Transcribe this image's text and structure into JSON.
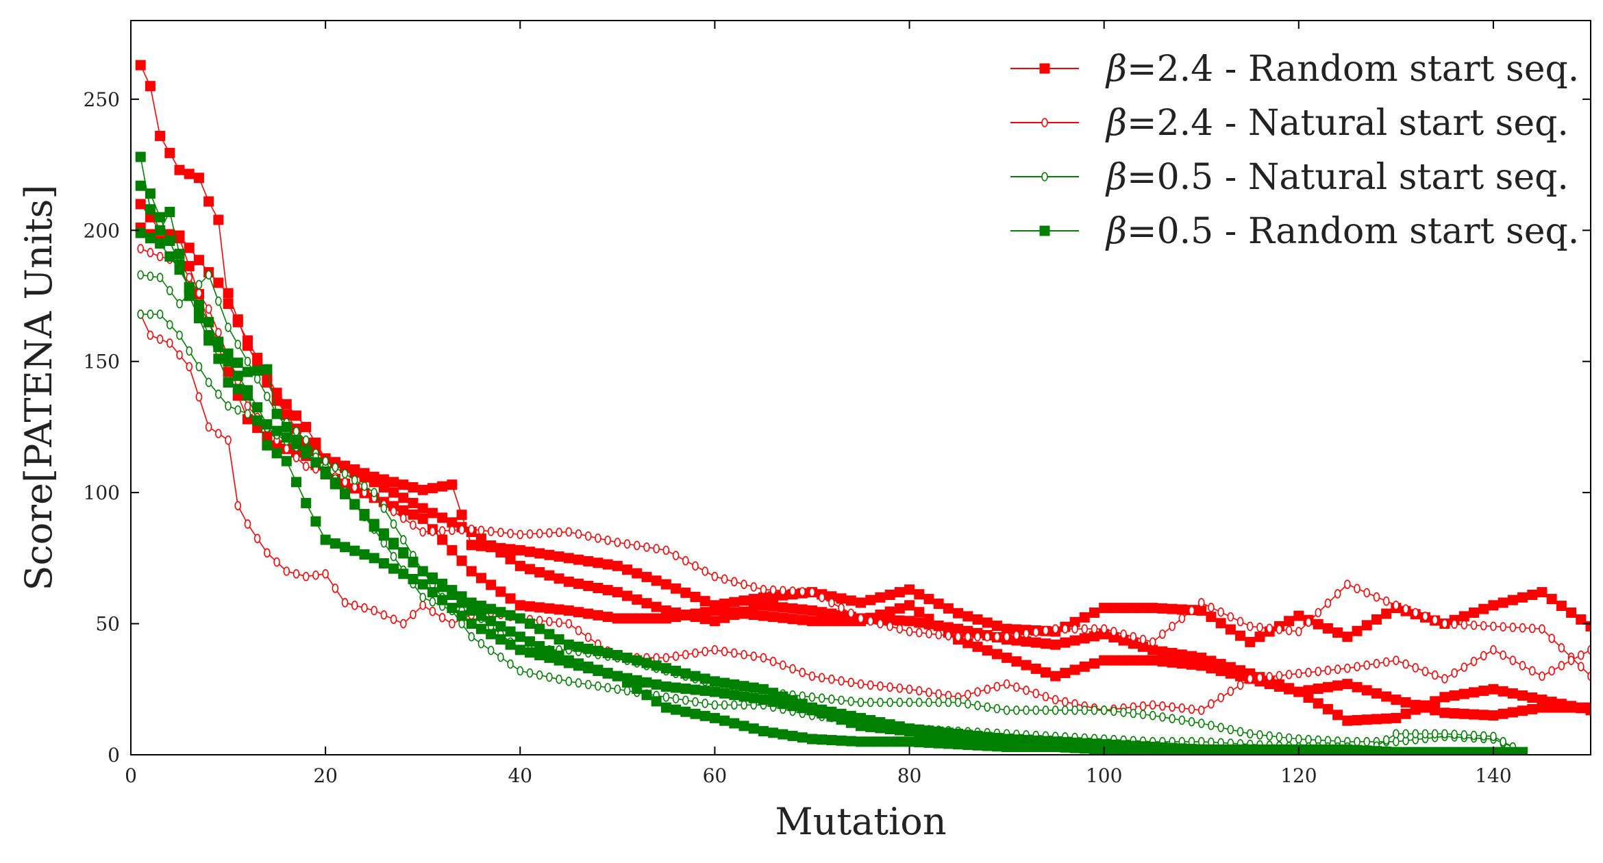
{
  "chart_data": {
    "type": "line",
    "xlabel": "Mutation",
    "ylabel": "Score[PATENA Units]",
    "xlim": [
      0,
      150
    ],
    "ylim": [
      0,
      280
    ],
    "xticks": [
      "0",
      "20",
      "40",
      "60",
      "80",
      "100",
      "120",
      "140"
    ],
    "yticks": [
      "0",
      "50",
      "100",
      "150",
      "200",
      "250"
    ],
    "grid": false,
    "legend_position": "top-right",
    "legend": [
      {
        "beta": "β",
        "text": "=2.4 - Random start seq.",
        "color": "#ff0000",
        "marker": "square"
      },
      {
        "beta": "β",
        "text": "=2.4 - Natural start seq.",
        "color": "#ff0000",
        "marker": "circle"
      },
      {
        "beta": "β",
        "text": "=0.5 - Natural start seq.",
        "color": "#008000",
        "marker": "circle"
      },
      {
        "beta": "β",
        "text": "=0.5 - Random start seq.",
        "color": "#008000",
        "marker": "square"
      }
    ],
    "series": [
      {
        "group": 0,
        "color": "#ff0000",
        "marker": "square",
        "x": [
          1,
          2,
          3,
          5,
          7,
          8,
          9,
          10,
          12,
          15,
          18,
          20,
          25,
          30,
          33,
          35,
          40,
          45,
          50,
          55,
          60,
          65,
          70,
          75,
          80,
          85,
          90,
          95,
          100,
          105,
          110,
          115,
          120,
          125,
          130,
          135,
          140,
          145,
          150
        ],
        "y": [
          263,
          255,
          236,
          223,
          220,
          211,
          204,
          172,
          158,
          138,
          125,
          113,
          106,
          101,
          103,
          80,
          78,
          75,
          72,
          65,
          57,
          60,
          62,
          58,
          63,
          54,
          48,
          47,
          56,
          56,
          55,
          43,
          53,
          45,
          56,
          50,
          57,
          62,
          49
        ]
      },
      {
        "group": 0,
        "color": "#ff0000",
        "marker": "square",
        "x": [
          1,
          3,
          5,
          8,
          10,
          12,
          15,
          18,
          20,
          25,
          30,
          35,
          40,
          45,
          50,
          55,
          60,
          65,
          70,
          75,
          80,
          85,
          90,
          95,
          100,
          105,
          110,
          115,
          120,
          125,
          130,
          135,
          140,
          145,
          150
        ],
        "y": [
          201,
          196,
          198,
          184,
          176,
          156,
          135,
          119,
          113,
          104,
          94,
          85,
          72,
          66,
          62,
          55,
          51,
          57,
          55,
          52,
          51,
          48,
          44,
          42,
          46,
          40,
          37,
          31,
          24,
          27,
          21,
          16,
          15,
          18,
          18
        ]
      },
      {
        "group": 0,
        "color": "#ff0000",
        "marker": "square",
        "x": [
          1,
          3,
          5,
          8,
          10,
          12,
          15,
          18,
          20,
          25,
          30,
          35,
          40,
          45,
          50,
          55,
          60,
          65,
          70,
          75,
          80,
          85,
          90,
          95,
          100,
          105,
          110,
          115,
          120,
          125,
          130,
          135,
          140,
          145,
          150
        ],
        "y": [
          210,
          200,
          197,
          165,
          146,
          128,
          118,
          114,
          107,
          98,
          90,
          70,
          57,
          55,
          52,
          52,
          55,
          53,
          51,
          51,
          57,
          44,
          37,
          30,
          36,
          36,
          34,
          29,
          24,
          13,
          14,
          22,
          25,
          21,
          17
        ]
      },
      {
        "group": 1,
        "color": "#ff0000",
        "marker": "circle",
        "x": [
          1,
          3,
          5,
          8,
          10,
          12,
          15,
          18,
          20,
          25,
          30,
          35,
          40,
          45,
          50,
          55,
          60,
          65,
          70,
          75,
          80,
          85,
          90,
          95,
          100,
          105,
          110,
          115,
          120,
          125,
          130,
          135,
          140,
          145,
          150
        ],
        "y": [
          193,
          190,
          188,
          170,
          152,
          133,
          120,
          110,
          108,
          98,
          85,
          86,
          84,
          85,
          81,
          78,
          68,
          63,
          62,
          52,
          47,
          45,
          45,
          48,
          48,
          43,
          58,
          49,
          47,
          65,
          57,
          50,
          49,
          48,
          30
        ]
      },
      {
        "group": 1,
        "color": "#ff0000",
        "marker": "circle",
        "x": [
          1,
          2,
          4,
          6,
          8,
          10,
          11,
          12,
          14,
          16,
          18,
          20,
          22,
          25,
          28,
          30,
          33,
          36,
          40,
          45,
          50,
          55,
          60,
          65,
          70,
          75,
          80,
          85,
          90,
          95,
          100,
          105,
          110,
          115,
          120,
          125,
          130,
          135,
          140,
          145,
          150
        ],
        "y": [
          168,
          160,
          157,
          148,
          125,
          120,
          95,
          88,
          77,
          70,
          68,
          69,
          58,
          55,
          50,
          57,
          50,
          55,
          52,
          50,
          37,
          37,
          40,
          37,
          30,
          27,
          25,
          22,
          27,
          21,
          17,
          19,
          17,
          29,
          31,
          33,
          36,
          29,
          40,
          30,
          40
        ]
      },
      {
        "group": 2,
        "color": "#008000",
        "marker": "circle",
        "x": [
          1,
          3,
          5,
          8,
          10,
          12,
          15,
          18,
          20,
          25,
          30,
          33,
          35,
          40,
          45,
          50,
          55,
          60,
          65,
          70,
          75,
          80,
          85,
          90,
          95,
          100,
          105,
          110,
          115,
          120,
          125,
          130,
          135,
          140,
          142
        ],
        "y": [
          183,
          182,
          172,
          183,
          163,
          150,
          130,
          120,
          110,
          86,
          60,
          55,
          55,
          40,
          40,
          37,
          32,
          27,
          24,
          22,
          20,
          20,
          20,
          17,
          17,
          17,
          15,
          12,
          8,
          6,
          5,
          5,
          7,
          6,
          3
        ]
      },
      {
        "group": 2,
        "color": "#008000",
        "marker": "circle",
        "x": [
          1,
          3,
          5,
          8,
          10,
          12,
          15,
          18,
          20,
          25,
          30,
          35,
          40,
          45,
          50,
          55,
          60,
          65,
          70,
          75,
          80,
          85,
          90,
          95,
          100,
          105,
          110,
          115,
          120,
          125,
          127,
          130,
          135,
          140,
          142
        ],
        "y": [
          168,
          168,
          160,
          142,
          133,
          130,
          122,
          115,
          112,
          100,
          70,
          45,
          32,
          28,
          25,
          22,
          19,
          19,
          15,
          13,
          10,
          9,
          8,
          7,
          6,
          5,
          5,
          4,
          3,
          3,
          1,
          8,
          8,
          7,
          3
        ]
      },
      {
        "group": 3,
        "color": "#008000",
        "marker": "square",
        "x": [
          1,
          2,
          3,
          4,
          6,
          8,
          10,
          12,
          14,
          15,
          18,
          20,
          25,
          30,
          35,
          40,
          45,
          50,
          55,
          60,
          65,
          70,
          75,
          80,
          85,
          90,
          95,
          100,
          105,
          110,
          115,
          120,
          125,
          130,
          135,
          140,
          143
        ],
        "y": [
          228,
          208,
          200,
          207,
          175,
          158,
          153,
          146,
          147,
          130,
          115,
          108,
          87,
          70,
          58,
          52,
          42,
          38,
          33,
          28,
          25,
          18,
          14,
          10,
          8,
          6,
          5,
          4,
          3,
          2,
          2,
          2,
          2,
          1,
          1,
          1,
          1
        ]
      },
      {
        "group": 3,
        "color": "#008000",
        "marker": "square",
        "x": [
          1,
          2,
          4,
          6,
          8,
          10,
          12,
          14,
          16,
          18,
          20,
          25,
          30,
          35,
          40,
          45,
          50,
          55,
          60,
          65,
          70,
          75,
          80,
          85,
          90,
          95,
          100,
          105,
          110,
          115,
          120,
          125,
          130,
          135,
          140,
          143
        ],
        "y": [
          217,
          214,
          196,
          178,
          160,
          142,
          137,
          118,
          112,
          96,
          82,
          75,
          65,
          50,
          40,
          35,
          30,
          26,
          24,
          21,
          17,
          11,
          9,
          7,
          5,
          5,
          3,
          2,
          2,
          1,
          1,
          1,
          1,
          1,
          1,
          1
        ]
      },
      {
        "group": 3,
        "color": "#008000",
        "marker": "square",
        "x": [
          1,
          3,
          5,
          8,
          10,
          12,
          14,
          16,
          18,
          20,
          25,
          30,
          35,
          40,
          45,
          50,
          55,
          60,
          65,
          70,
          75,
          80,
          85,
          90,
          95,
          100,
          105,
          110
        ],
        "y": [
          199,
          195,
          185,
          165,
          150,
          139,
          126,
          121,
          116,
          107,
          88,
          70,
          55,
          45,
          36,
          30,
          18,
          14,
          9,
          6,
          5,
          5,
          4,
          3,
          3,
          2,
          2,
          2
        ]
      }
    ]
  }
}
